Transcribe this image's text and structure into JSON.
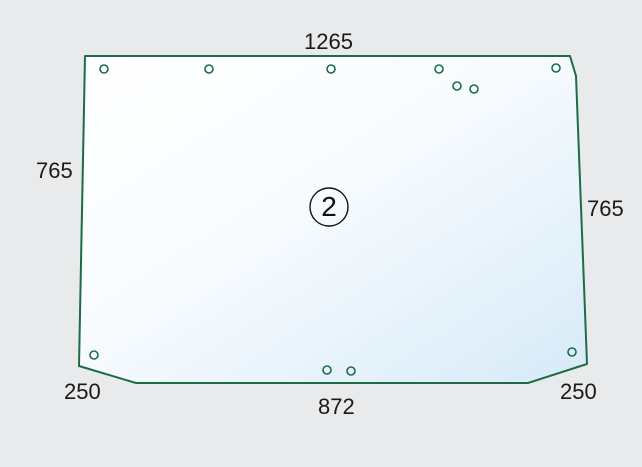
{
  "glass": {
    "part_number": "2",
    "colors": {
      "outline": "#1e6b45",
      "fill_light": "#ffffff",
      "fill_tint": "#d6eaf8",
      "hole": "#1e6b45"
    }
  },
  "dimensions": {
    "top": "1265",
    "left": "765",
    "right": "765",
    "bottom": "872",
    "bottom_left_chamfer": "250",
    "bottom_right_chamfer": "250"
  }
}
